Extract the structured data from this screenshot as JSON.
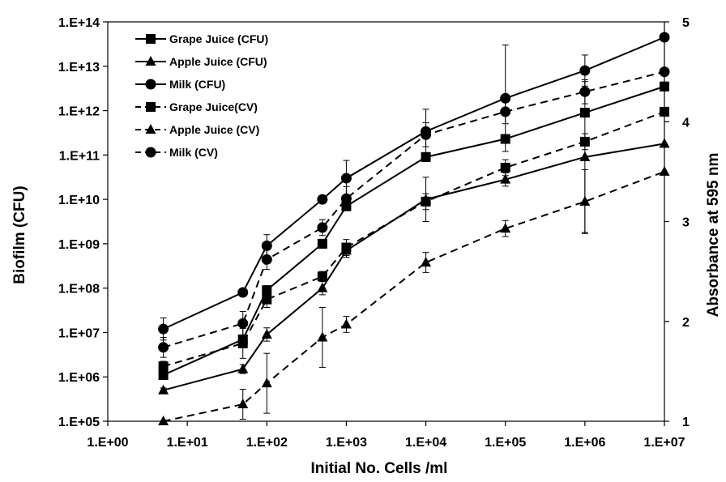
{
  "chart_data": {
    "type": "line",
    "xlabel": "Initial No. Cells /ml",
    "ylabel_left": "Biofilm (CFU)",
    "ylabel_right": "Absorbance at 595 nm",
    "x_scale": "log",
    "y_scale_left": "log",
    "y_scale_right": "linear",
    "xlim": [
      1,
      10000000
    ],
    "ylim_left": [
      100000,
      100000000000000
    ],
    "ylim_right": [
      1,
      5
    ],
    "x_ticks": [
      1,
      10,
      100,
      1000,
      10000,
      100000,
      1000000,
      10000000
    ],
    "x_tick_labels": [
      "1.E+00",
      "1.E+01",
      "1.E+02",
      "1.E+03",
      "1.E+04",
      "1.E+05",
      "1.E+06",
      "1.E+07"
    ],
    "y_ticks_left": [
      100000,
      1000000,
      10000000,
      100000000,
      1000000000,
      10000000000,
      100000000000,
      1000000000000,
      10000000000000,
      100000000000000
    ],
    "y_tick_labels_left": [
      "1.E+05",
      "1.E+06",
      "1.E+07",
      "1.E+08",
      "1.E+09",
      "1.E+10",
      "1.E+11",
      "1.E+12",
      "1.E+13",
      "1.E+14"
    ],
    "y_ticks_right": [
      1,
      2,
      3,
      4,
      5
    ],
    "y_tick_labels_right": [
      "1",
      "2",
      "3",
      "4",
      "5"
    ],
    "grid": false,
    "legend_position": "top-left",
    "x": [
      5,
      50,
      100,
      500,
      1000,
      10000,
      100000,
      1000000,
      10000000
    ],
    "series": [
      {
        "name": "Grape Juice (CFU)",
        "axis": "left",
        "marker": "square",
        "dash": "solid",
        "values": [
          1100000,
          7000000,
          90000000,
          1000000000,
          7000000000,
          90000000000,
          230000000000,
          900000000000,
          3500000000000
        ],
        "error": [
          0,
          0.1,
          0.1,
          0.1,
          0.1,
          0.1,
          0.1,
          0.1,
          0.1
        ]
      },
      {
        "name": "Apple Juice (CFU)",
        "axis": "left",
        "marker": "triangle",
        "dash": "solid",
        "values": [
          500000,
          1500000,
          9000000,
          100000000,
          700000000,
          10000000000,
          28000000000,
          90000000000,
          180000000000
        ],
        "error": [
          0.05,
          0.1,
          0.15,
          0.15,
          0.15,
          0.5,
          0.15,
          1.7,
          0
        ]
      },
      {
        "name": "Milk  (CFU)",
        "axis": "left",
        "marker": "circle",
        "dash": "solid",
        "values": [
          12000000,
          80000000,
          900000000,
          10000000000,
          30000000000,
          340000000000,
          1900000000000,
          8000000000000,
          45000000000000
        ],
        "error": [
          0.25,
          0,
          0.25,
          0,
          0.4,
          0.5,
          1.2,
          0.35,
          0
        ]
      },
      {
        "name": "Grape Juice(CV)",
        "axis": "right",
        "marker": "square",
        "dash": "dashed",
        "values": [
          1.55,
          1.78,
          2.22,
          2.45,
          2.74,
          3.2,
          3.54,
          3.8,
          4.1
        ],
        "error": [
          0.05,
          0.15,
          0.08,
          0.05,
          0.08,
          0.08,
          0.08,
          0.08,
          0
        ]
      },
      {
        "name": "Apple Juice (CV)",
        "axis": "right",
        "marker": "triangle",
        "dash": "dashed",
        "values": [
          1.0,
          1.17,
          1.38,
          1.84,
          1.97,
          2.59,
          2.93,
          3.2,
          3.5
        ],
        "error": [
          0,
          0.15,
          0.3,
          0.3,
          0.08,
          0.1,
          0.08,
          0.32,
          0
        ]
      },
      {
        "name": "Milk  (CV)",
        "axis": "right",
        "marker": "circle",
        "dash": "dashed",
        "values": [
          1.74,
          1.98,
          2.62,
          2.94,
          3.23,
          3.87,
          4.1,
          4.3,
          4.5
        ],
        "error": [
          0.1,
          0.12,
          0.1,
          0.08,
          0.12,
          0.12,
          0.12,
          0.12,
          0
        ]
      }
    ]
  }
}
